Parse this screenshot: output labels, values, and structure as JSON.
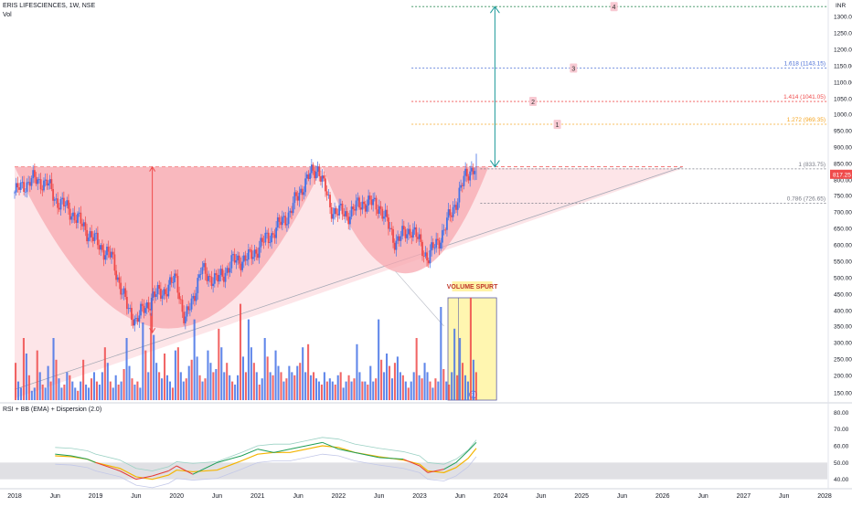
{
  "header": {
    "symbol": "ERIS LIFESCIENCES, 1W, NSE",
    "volume_label": "Vol",
    "currency": "INR"
  },
  "rsi_panel": {
    "title": "RSI + BB (EMA) + Dispersion (2.0)"
  },
  "annotations": {
    "volume_spurt": "VOLUME SPURT",
    "circle_marker": "2"
  },
  "colors": {
    "up": "#4472e6",
    "down": "#ef4b4b",
    "cup_fill": "#f7a8b0",
    "triangle_fill": "#fde0e4",
    "highlight_box": "#fff6b0",
    "arrow_teal": "#1c9a9a",
    "price_badge": "#ef4b4b",
    "rsi_band": "#e0e0e4"
  },
  "chart_data": [
    {
      "type": "candlestick",
      "title": "ERIS LIFESCIENCES, 1W, NSE",
      "y_axis_ticks": [
        150,
        200,
        250,
        300,
        350,
        400,
        450,
        500,
        550,
        600,
        650,
        700,
        750,
        800,
        850,
        900,
        950,
        1000,
        1050,
        1100,
        1150,
        1200,
        1250,
        1300
      ],
      "ylim": [
        130,
        1320
      ],
      "x_axis_ticks": [
        "2018",
        "Jun",
        "2019",
        "Jun",
        "2020",
        "Jun",
        "2021",
        "Jun",
        "2022",
        "Jun",
        "2023",
        "Jun",
        "2024",
        "Jun",
        "2025",
        "Jun",
        "2026",
        "Jun",
        "2027",
        "Jun",
        "2028"
      ],
      "last_price": "817.25",
      "series": [
        {
          "name": "Price (approx. path)",
          "x": [
            2018.0,
            2018.2,
            2018.4,
            2018.5,
            2018.7,
            2019.0,
            2019.2,
            2019.4,
            2019.5,
            2019.7,
            2019.9,
            2020.0,
            2020.1,
            2020.3,
            2020.5,
            2020.7,
            2020.9,
            2021.0,
            2021.2,
            2021.4,
            2021.6,
            2021.75,
            2021.9,
            2022.1,
            2022.3,
            2022.5,
            2022.7,
            2022.9,
            2023.1,
            2023.25,
            2023.4,
            2023.55,
            2023.65
          ],
          "y": [
            760,
            800,
            790,
            740,
            700,
            610,
            560,
            400,
            370,
            440,
            470,
            500,
            360,
            520,
            490,
            550,
            560,
            590,
            640,
            700,
            800,
            840,
            710,
            690,
            730,
            720,
            610,
            650,
            560,
            620,
            700,
            800,
            840
          ]
        }
      ],
      "fib_levels": [
        {
          "ratio": "1",
          "price": "833.75",
          "label": "1 (833.75)",
          "color": "#787b86"
        },
        {
          "ratio": "0.786",
          "price": "726.65",
          "label": "0.786 (726.65)",
          "color": "#787b86"
        },
        {
          "ratio": "1.272",
          "price": "969.35",
          "label": "1.272 (969.35)",
          "color": "#f5a623"
        },
        {
          "ratio": "1.414",
          "price": "1041.05",
          "label": "1.414 (1041.05)",
          "color": "#ef4b4b"
        },
        {
          "ratio": "1.618",
          "price": "1143.15",
          "label": "1.618 (1143.15)",
          "color": "#4a6fd6"
        }
      ],
      "fib_markers": [
        "1",
        "2",
        "3",
        "4"
      ],
      "volume_bars": [
        120,
        60,
        40,
        200,
        150,
        80,
        30,
        40,
        160,
        90,
        50,
        40,
        110,
        60,
        200,
        130,
        70,
        40,
        50,
        90,
        80,
        60,
        40,
        30,
        60,
        130,
        50,
        40,
        70,
        90,
        60,
        50,
        90,
        170,
        120,
        60,
        40,
        80,
        50,
        60,
        100,
        200,
        110,
        70,
        50,
        60,
        40,
        250,
        160,
        90,
        280,
        210,
        120,
        90,
        70,
        150,
        80,
        60,
        40,
        160,
        170,
        90,
        60,
        70,
        110,
        130,
        260,
        140,
        80,
        60,
        70,
        160,
        120,
        90,
        100,
        230,
        170,
        90,
        120,
        80,
        60,
        50,
        80,
        310,
        140,
        90,
        260,
        170,
        120,
        90,
        50,
        70,
        200,
        140,
        90,
        80,
        160,
        110,
        90,
        60,
        70,
        110,
        90,
        80,
        110,
        120,
        170,
        90,
        180,
        80,
        90,
        70,
        60,
        50,
        90,
        60,
        70,
        60,
        50,
        80,
        90,
        40,
        60,
        80,
        60,
        70,
        180,
        90,
        60,
        60,
        50,
        110,
        60,
        70,
        260,
        130,
        90,
        150,
        110,
        70,
        120,
        140,
        90,
        80,
        60,
        40,
        60,
        90,
        200,
        80,
        70,
        120,
        90,
        60,
        40,
        70,
        60,
        300,
        100,
        60,
        50,
        90,
        230,
        80,
        200,
        120,
        80,
        60,
        330,
        130,
        90
      ],
      "annotations": [
        "VOLUME SPURT"
      ]
    },
    {
      "type": "line",
      "title": "RSI + BB (EMA) + Dispersion (2.0)",
      "y_axis_ticks": [
        40,
        50,
        60,
        70,
        80
      ],
      "ylim": [
        36,
        84
      ],
      "series": [
        {
          "name": "RSI",
          "x": [
            2018.5,
            2018.7,
            2018.9,
            2019.0,
            2019.3,
            2019.5,
            2019.7,
            2019.9,
            2020.0,
            2020.2,
            2020.5,
            2020.8,
            2021.0,
            2021.2,
            2021.4,
            2021.6,
            2021.8,
            2022.0,
            2022.2,
            2022.5,
            2022.8,
            2023.0,
            2023.1,
            2023.3,
            2023.45,
            2023.6,
            2023.7
          ],
          "y": [
            55,
            54,
            52,
            50,
            45,
            40,
            42,
            45,
            48,
            43,
            50,
            54,
            58,
            56,
            58,
            60,
            62,
            58,
            56,
            53,
            52,
            48,
            44,
            46,
            50,
            57,
            62
          ]
        }
      ]
    }
  ]
}
